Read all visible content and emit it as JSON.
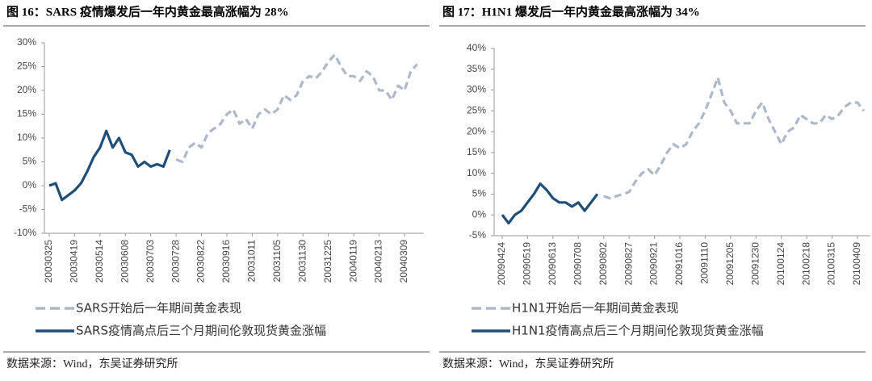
{
  "chart_data": [
    {
      "type": "line",
      "title": "图 16：SARS 疫情爆发后一年内黄金最高涨幅为 28%",
      "note": "数据来源：Wind，东吴证券研究所",
      "categories": [
        "20030325",
        null,
        null,
        null,
        "20030419",
        null,
        null,
        null,
        "20030514",
        null,
        null,
        null,
        "20030608",
        null,
        null,
        null,
        "20030703",
        null,
        null,
        null,
        "20030728",
        null,
        null,
        null,
        "20030822",
        null,
        null,
        null,
        "20030916",
        null,
        null,
        null,
        "20031011",
        null,
        null,
        null,
        "20031105",
        null,
        null,
        null,
        "20031130",
        null,
        null,
        null,
        "20031225",
        null,
        null,
        null,
        "20040119",
        null,
        null,
        null,
        "20040213",
        null,
        null,
        null,
        "20040309",
        null,
        null
      ],
      "series": [
        {
          "name": "SARS开始后一年期间黄金表现",
          "color": "#adb9ca",
          "dashed": true,
          "values": [
            null,
            null,
            null,
            null,
            null,
            null,
            null,
            null,
            null,
            null,
            null,
            null,
            null,
            null,
            null,
            null,
            null,
            null,
            null,
            null,
            5.5,
            5,
            8,
            9,
            8,
            11,
            12,
            13,
            15,
            16,
            13,
            14,
            12,
            15,
            16,
            15,
            16,
            19,
            18,
            19,
            22,
            23,
            22.5,
            24,
            26,
            27.5,
            25,
            23,
            23,
            22,
            24,
            23,
            20,
            20,
            18,
            21,
            20,
            24,
            25.5
          ]
        },
        {
          "name": "SARS疫情高点后三个月期间伦敦现货黄金涨幅",
          "color": "#1f4e79",
          "dashed": false,
          "values": [
            0,
            0.5,
            -3,
            -2,
            -1,
            0.5,
            3,
            6,
            8,
            11.5,
            8,
            10,
            7,
            6.5,
            4,
            5,
            4,
            4.5,
            4,
            7.5,
            null,
            null,
            null,
            null,
            null,
            null,
            null,
            null,
            null,
            null,
            null,
            null,
            null,
            null,
            null,
            null,
            null,
            null,
            null,
            null,
            null,
            null,
            null,
            null,
            null,
            null,
            null,
            null,
            null,
            null,
            null,
            null,
            null,
            null,
            null,
            null,
            null,
            null,
            null
          ]
        }
      ],
      "ylim": [
        -10,
        30
      ],
      "yticks": [
        {
          "value": -10,
          "label": "-10%"
        },
        {
          "value": -5,
          "label": "-5%"
        },
        {
          "value": 0,
          "label": "0%"
        },
        {
          "value": 5,
          "label": "5%"
        },
        {
          "value": 10,
          "label": "10%"
        },
        {
          "value": 15,
          "label": "15%"
        },
        {
          "value": 20,
          "label": "20%"
        },
        {
          "value": 25,
          "label": "25%"
        },
        {
          "value": 30,
          "label": "30%"
        }
      ]
    },
    {
      "type": "line",
      "title": "图 17：H1N1 爆发后一年内黄金最高涨幅为 34%",
      "note": "数据来源：Wind，东吴证券研究所",
      "categories": [
        "20090424",
        null,
        null,
        null,
        "20090519",
        null,
        null,
        null,
        "20090613",
        null,
        null,
        null,
        "20090708",
        null,
        null,
        null,
        "20090802",
        null,
        null,
        null,
        "20090827",
        null,
        null,
        null,
        "20090921",
        null,
        null,
        null,
        "20091016",
        null,
        null,
        null,
        "20091110",
        null,
        null,
        null,
        "20091205",
        null,
        null,
        null,
        "20091230",
        null,
        null,
        null,
        "20100124",
        null,
        null,
        null,
        "20100218",
        null,
        null,
        null,
        "20100315",
        null,
        null,
        null,
        "20100409",
        null
      ],
      "series": [
        {
          "name": "H1N1开始后一年期间黄金表现",
          "color": "#adb9ca",
          "dashed": true,
          "values": [
            null,
            null,
            null,
            null,
            null,
            null,
            null,
            null,
            null,
            null,
            null,
            null,
            null,
            null,
            null,
            null,
            4.5,
            4,
            4.5,
            5,
            5.5,
            8,
            10,
            11,
            9.5,
            12,
            15,
            17,
            16,
            17,
            20,
            22,
            25,
            29,
            33,
            27,
            25,
            22,
            22,
            22,
            25,
            27,
            23,
            20,
            17,
            20,
            21,
            24,
            23,
            22,
            22,
            24,
            23,
            24,
            26,
            27,
            27,
            25
          ]
        },
        {
          "name": "H1N1疫情高点后三个月期间伦敦现货黄金涨幅",
          "color": "#1f4e79",
          "dashed": false,
          "values": [
            0,
            -2,
            0,
            1,
            3,
            5,
            7.5,
            6,
            4,
            3,
            3,
            2,
            3,
            1,
            3,
            5,
            null,
            null,
            null,
            null,
            null,
            null,
            null,
            null,
            null,
            null,
            null,
            null,
            null,
            null,
            null,
            null,
            null,
            null,
            null,
            null,
            null,
            null,
            null,
            null,
            null,
            null,
            null,
            null,
            null,
            null,
            null,
            null,
            null,
            null,
            null,
            null,
            null,
            null,
            null,
            null,
            null,
            null
          ]
        }
      ],
      "ylim": [
        -5,
        40
      ],
      "yticks": [
        {
          "value": -5,
          "label": "-5%"
        },
        {
          "value": 0,
          "label": "0%"
        },
        {
          "value": 5,
          "label": "5%"
        },
        {
          "value": 10,
          "label": "10%"
        },
        {
          "value": 15,
          "label": "15%"
        },
        {
          "value": 20,
          "label": "20%"
        },
        {
          "value": 25,
          "label": "25%"
        },
        {
          "value": 30,
          "label": "30%"
        },
        {
          "value": 35,
          "label": "35%"
        },
        {
          "value": 40,
          "label": "40%"
        }
      ]
    }
  ]
}
